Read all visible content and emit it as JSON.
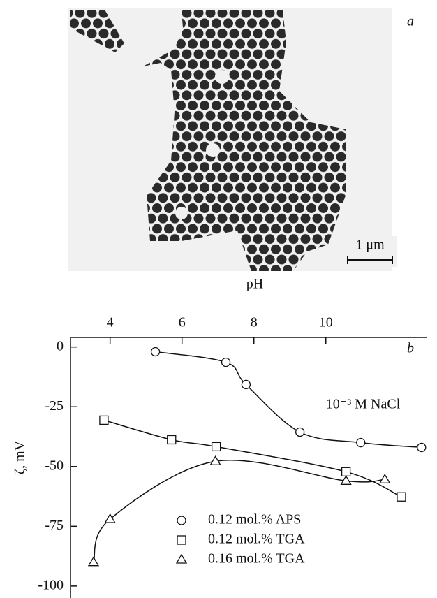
{
  "image": {
    "label": "a",
    "scale_bar": "1 μm"
  },
  "chart_data": {
    "type": "scatter",
    "panel_label": "b",
    "x_label": "pH",
    "y_label": "ζ, mV",
    "annotation": "10⁻³ M NaCl",
    "xlim": [
      2.9,
      12.8
    ],
    "xticks": [
      4,
      6,
      8,
      10
    ],
    "ylim": [
      4,
      -105
    ],
    "yticks": [
      0,
      -25,
      -50,
      -75,
      -100
    ],
    "series": [
      {
        "name": "0.12 mol.% APS",
        "color": "#111111",
        "marker": "circle",
        "x": [
          5.26,
          7.22,
          7.78,
          9.28,
          10.97,
          12.66
        ],
        "values": [
          -2,
          -6.4,
          -15.7,
          -35.6,
          -40,
          -42
        ]
      },
      {
        "name": "0.12 mol.% TGA",
        "color": "#111111",
        "marker": "square",
        "x": [
          3.83,
          5.71,
          6.95,
          10.56,
          12.1
        ],
        "values": [
          -30.6,
          -38.8,
          -41.7,
          -52.2,
          -62.7
        ]
      },
      {
        "name": "0.16 mol.% TGA",
        "color": "#111111",
        "marker": "triangle",
        "x": [
          3.54,
          4.0,
          6.93,
          10.56,
          11.64
        ],
        "values": [
          -90,
          -72,
          -47.8,
          -56,
          -55.4
        ]
      }
    ]
  }
}
